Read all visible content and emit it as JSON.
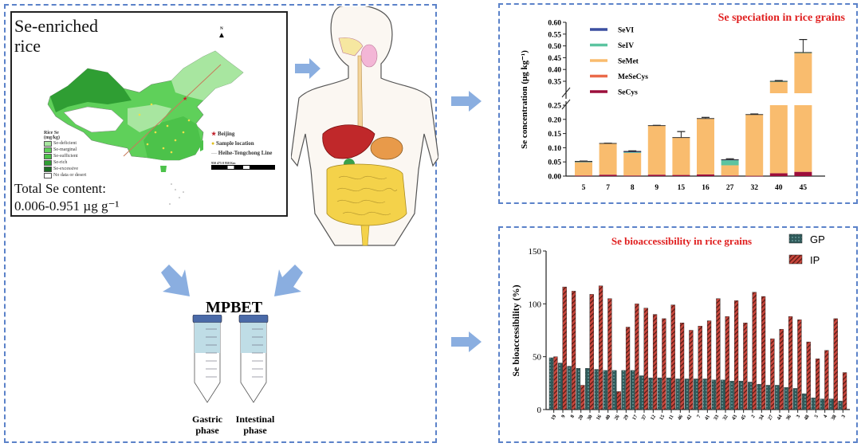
{
  "map_panel": {
    "title": "Se-enriched rice",
    "total_label": "Total Se content:",
    "total_range": "0.006-0.951 µg g⁻¹",
    "north": "N",
    "legend_title": "Rice Se (mg/kg)",
    "legend_items": [
      "Se-deficient",
      "Se-marginal",
      "Se-sufficient",
      "Se-rich",
      "Se-excessive",
      "No data or desert"
    ],
    "legend_colors": [
      "#a8e6a0",
      "#5fd05a",
      "#4cc24a",
      "#2f9e33",
      "#1d6b24",
      "#ffffff"
    ],
    "markers": [
      "Beijing",
      "Sample location",
      "Heihe-Tengchong Line"
    ],
    "scale": "950  475  0  950 Km"
  },
  "mpbet": {
    "title": "MPBET",
    "tubes": [
      "Gastric phase",
      "Intestinal phase"
    ]
  },
  "chart_data": [
    {
      "type": "bar",
      "stacked": true,
      "title": "Se speciation in rice grains",
      "xlabel": "",
      "ylabel": "Se concentration (μg kg⁻¹)",
      "ylim": [
        0,
        0.6
      ],
      "axis_break": [
        0.25,
        0.3
      ],
      "yticks": [
        "0.00",
        "0.05",
        "0.10",
        "0.15",
        "0.20",
        "0.25",
        "0.35",
        "0.40",
        "0.45",
        "0.50",
        "0.55",
        "0.60"
      ],
      "categories": [
        "5",
        "7",
        "8",
        "9",
        "15",
        "16",
        "27",
        "32",
        "40",
        "45"
      ],
      "legend_position": "top-left",
      "series": [
        {
          "name": "SeCys",
          "color": "#9c0e3b",
          "values": [
            0.002,
            0.005,
            0.002,
            0.005,
            0.004,
            0.006,
            0.002,
            0.001,
            0.01,
            0.015
          ]
        },
        {
          "name": "MeSeCys",
          "color": "#ea6a4a",
          "values": [
            0,
            0,
            0,
            0,
            0,
            0,
            0,
            0,
            0,
            0
          ]
        },
        {
          "name": "SeMet",
          "color": "#f9bc6e",
          "values": [
            0.048,
            0.11,
            0.08,
            0.173,
            0.132,
            0.197,
            0.036,
            0.216,
            0.338,
            0.455
          ]
        },
        {
          "name": "SeIV",
          "color": "#5cc4a0",
          "values": [
            0.001,
            0,
            0.002,
            0,
            0,
            0,
            0.018,
            0,
            0.002,
            0.002
          ]
        },
        {
          "name": "SeVI",
          "color": "#3b4fa0",
          "values": [
            0.001,
            0,
            0.003,
            0,
            0,
            0,
            0.002,
            0,
            0,
            0
          ]
        }
      ],
      "error_upper": [
        0.053,
        0.116,
        0.089,
        0.179,
        0.157,
        0.207,
        0.061,
        0.219,
        0.353,
        0.527
      ]
    },
    {
      "type": "bar",
      "title": "Se bioaccessibility in rice grains",
      "xlabel": "",
      "ylabel": "Se bioaccessibility (%)",
      "ylim": [
        0,
        150
      ],
      "yticks": [
        "0",
        "50",
        "100",
        "150"
      ],
      "legend_position": "top-right",
      "categories": [
        "19",
        "9",
        "8",
        "20",
        "30",
        "16",
        "40",
        "26",
        "29",
        "17",
        "37",
        "12",
        "15",
        "11",
        "46",
        "42",
        "7",
        "41",
        "33",
        "32",
        "43",
        "45",
        "2",
        "34",
        "27",
        "44",
        "36",
        "3",
        "48",
        "5",
        "4",
        "38",
        "3"
      ],
      "series": [
        {
          "name": "GP",
          "color": "#2f5a5a",
          "values": [
            49,
            44,
            41,
            39,
            39,
            38,
            37,
            37,
            37,
            37,
            32,
            30,
            30,
            30,
            29,
            29,
            29,
            29,
            28,
            28,
            27,
            27,
            26,
            24,
            23,
            23,
            21,
            20,
            15,
            11,
            10,
            10,
            8
          ]
        },
        {
          "name": "IP",
          "color": "#c8463c",
          "values": [
            50,
            116,
            112,
            23,
            109,
            117,
            105,
            17,
            78,
            100,
            96,
            90,
            86,
            99,
            82,
            75,
            79,
            84,
            105,
            88,
            103,
            82,
            111,
            107,
            67,
            76,
            88,
            85,
            64,
            48,
            56,
            86,
            35
          ]
        }
      ]
    }
  ]
}
